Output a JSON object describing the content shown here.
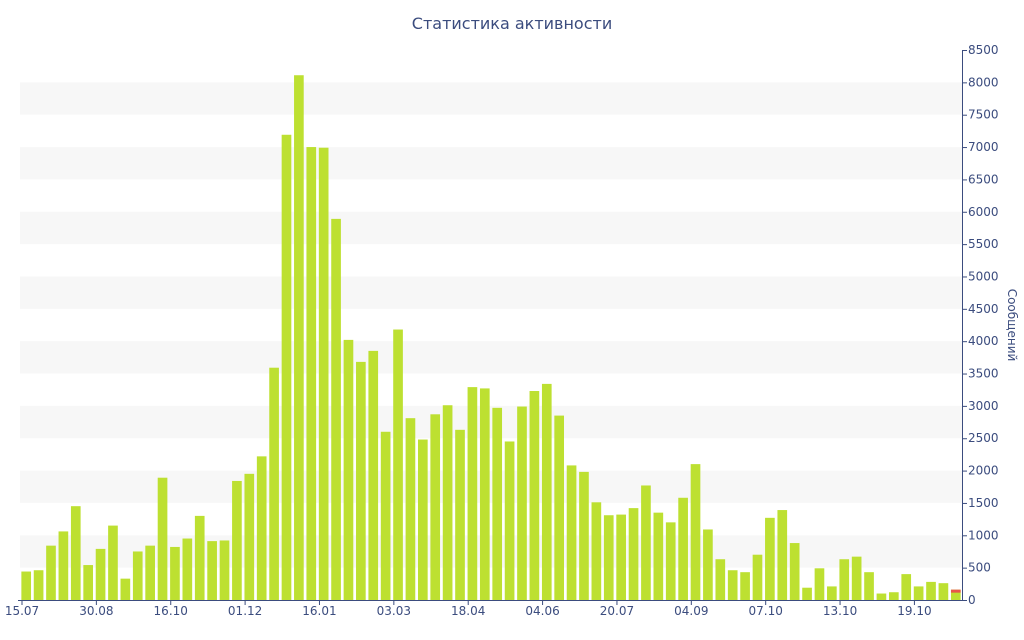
{
  "chart_data": {
    "type": "bar",
    "title": "Статистика активности",
    "ylabel": "Сообщений",
    "xlabel": "",
    "ylim": [
      0,
      8500
    ],
    "yticks": [
      0,
      500,
      1000,
      1500,
      2000,
      2500,
      3000,
      3500,
      4000,
      4500,
      5000,
      5500,
      6000,
      6500,
      7000,
      7500,
      8000,
      8500
    ],
    "y_axis_side": "right",
    "grid": "alternating horizontal bands",
    "bar_color": "#bde031",
    "highlight_color": "#e8564a",
    "band_color": "#f7f7f7",
    "axis_color": "#3b4c7e",
    "x_tick_labels": [
      {
        "label": "15.07",
        "index": 0
      },
      {
        "label": "30.08",
        "index": 6
      },
      {
        "label": "16.10",
        "index": 12
      },
      {
        "label": "01.12",
        "index": 18
      },
      {
        "label": "16.01",
        "index": 24
      },
      {
        "label": "03.03",
        "index": 30
      },
      {
        "label": "18.04",
        "index": 36
      },
      {
        "label": "04.06",
        "index": 42
      },
      {
        "label": "20.07",
        "index": 48
      },
      {
        "label": "04.09",
        "index": 54
      },
      {
        "label": "07.10",
        "index": 60
      },
      {
        "label": "13.10",
        "index": 66
      },
      {
        "label": "19.10",
        "index": 72
      }
    ],
    "values": [
      440,
      460,
      840,
      1060,
      1450,
      540,
      790,
      1150,
      330,
      750,
      840,
      1890,
      820,
      950,
      1300,
      910,
      920,
      1840,
      1950,
      2220,
      3590,
      7190,
      8110,
      7000,
      6990,
      5890,
      4020,
      3680,
      3850,
      2600,
      4180,
      2810,
      2480,
      2870,
      3010,
      2630,
      3290,
      3270,
      2970,
      2450,
      2990,
      3230,
      3340,
      2850,
      2080,
      1980,
      1510,
      1310,
      1320,
      1420,
      1770,
      1350,
      1200,
      1580,
      2100,
      1090,
      630,
      460,
      430,
      700,
      1270,
      1390,
      880,
      190,
      490,
      210,
      630,
      670,
      430,
      100,
      120,
      400,
      210,
      280,
      260,
      160
    ],
    "last_bar_highlight_value": 20
  }
}
